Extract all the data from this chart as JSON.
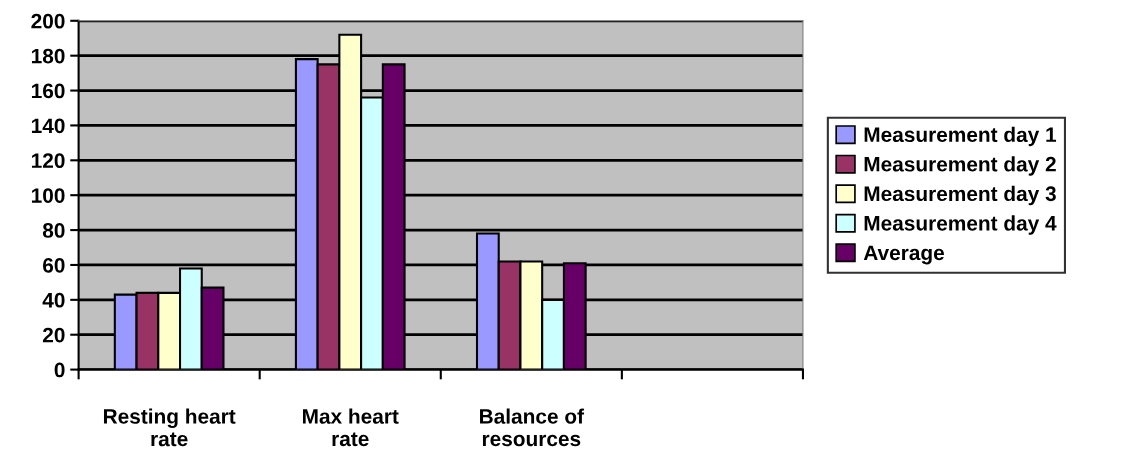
{
  "chart_data": {
    "type": "bar",
    "categories": [
      "Resting heart\nrate",
      "Max heart\nrate",
      "Balance of\nresources",
      null
    ],
    "series": [
      {
        "name": "Measurement day 1",
        "color": "#9999ff",
        "values": [
          43,
          178,
          78,
          null
        ]
      },
      {
        "name": "Measurement day 2",
        "color": "#993366",
        "values": [
          44,
          175,
          62,
          null
        ]
      },
      {
        "name": "Measurement day 3",
        "color": "#ffffcc",
        "values": [
          44,
          192,
          62,
          null
        ]
      },
      {
        "name": "Measurement day 4",
        "color": "#ccffff",
        "values": [
          58,
          156,
          40,
          null
        ]
      },
      {
        "name": "Average",
        "color": "#660066",
        "values": [
          47,
          175,
          61,
          null
        ]
      }
    ],
    "ylim": [
      0,
      200
    ],
    "yticks": [
      0,
      20,
      40,
      60,
      80,
      100,
      120,
      140,
      160,
      180,
      200
    ],
    "grid": "y",
    "legend": "right"
  }
}
